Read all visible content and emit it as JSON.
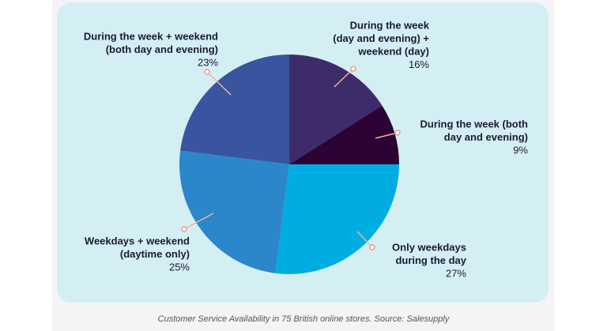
{
  "chart_data": {
    "type": "pie",
    "categories": [
      [
        "During the week",
        "(day and evening) +",
        "weekend (day)"
      ],
      [
        "During the week (both",
        "day and evening)"
      ],
      [
        "Only weekdays",
        "during the day"
      ],
      [
        "Weekdays + weekend",
        "(daytime only)"
      ],
      [
        "During the week + weekend",
        "(both day and evening)"
      ]
    ],
    "values": [
      16,
      9,
      27,
      25,
      23
    ],
    "value_labels": [
      "16%",
      "9%",
      "27%",
      "25%",
      "23%"
    ],
    "colors": [
      "#3e2c6a",
      "#2d0235",
      "#00ade2",
      "#2b87c9",
      "#3a559f"
    ],
    "caption": "Customer Service Availability in 75 British online stores. Source: Salesupply"
  }
}
